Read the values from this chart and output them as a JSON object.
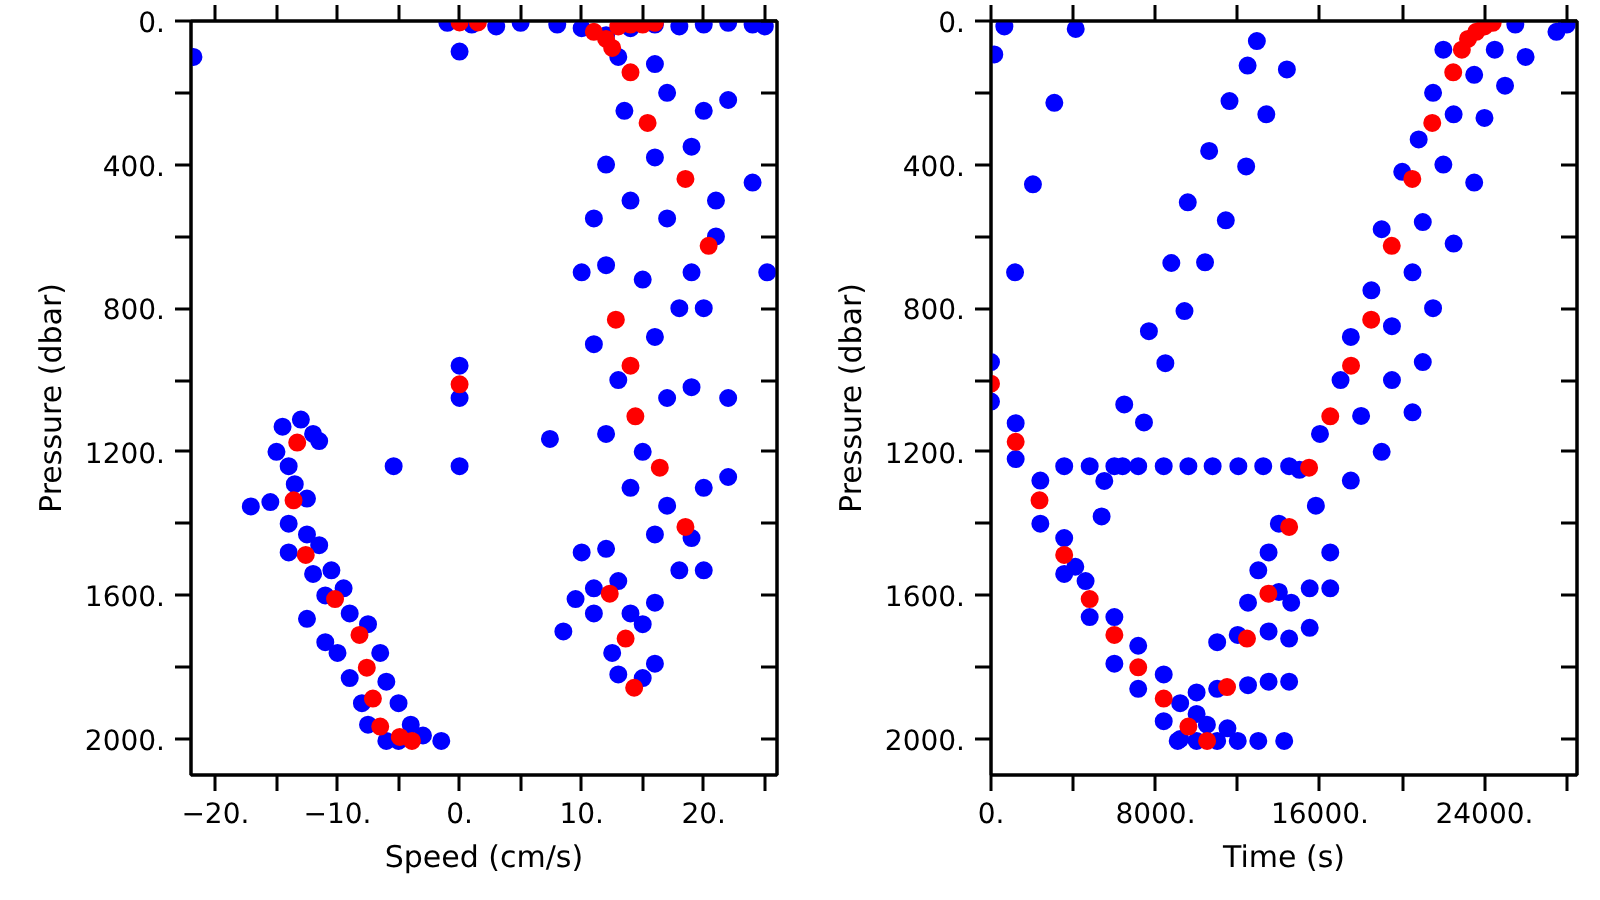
{
  "chart_data": [
    {
      "type": "scatter",
      "xlabel": "Speed (cm/s)",
      "ylabel": "Pressure (dbar)",
      "marker": "circle",
      "grid": false,
      "xlim": [
        -22,
        26
      ],
      "ylim": [
        2100,
        0
      ],
      "xticks": [
        {
          "value": -20,
          "label": "−20."
        },
        {
          "value": -15,
          "label": null
        },
        {
          "value": -10,
          "label": "−10."
        },
        {
          "value": -5,
          "label": null
        },
        {
          "value": 0,
          "label": "0."
        },
        {
          "value": 5,
          "label": null
        },
        {
          "value": 10,
          "label": "10."
        },
        {
          "value": 15,
          "label": null
        },
        {
          "value": 20,
          "label": "20."
        },
        {
          "value": 25,
          "label": null
        }
      ],
      "yticks": [
        {
          "value": 0,
          "label": "0."
        },
        {
          "value": 200,
          "label": null
        },
        {
          "value": 400,
          "label": "400."
        },
        {
          "value": 600,
          "label": null
        },
        {
          "value": 800,
          "label": "800."
        },
        {
          "value": 1000,
          "label": null
        },
        {
          "value": 1200,
          "label": "1200."
        },
        {
          "value": 1400,
          "label": null
        },
        {
          "value": 1600,
          "label": "1600."
        },
        {
          "value": 1800,
          "label": null
        },
        {
          "value": 2000,
          "label": "2000."
        }
      ],
      "series": [
        {
          "color": "#0000ff",
          "x": [
            -1,
            1,
            3,
            5,
            8,
            10,
            12,
            14,
            16,
            18,
            20,
            22,
            24,
            25,
            0,
            -21.8,
            -14.5,
            -13,
            -12,
            -15,
            -11.5,
            -14,
            -13.5,
            -15.5,
            -12.5,
            -17.1,
            -14,
            -12.5,
            -14,
            -11.5,
            -12,
            -10.5,
            -11,
            -9.5,
            -12.5,
            -9,
            -11,
            -7.5,
            -10,
            -6.5,
            -9,
            -6,
            -8,
            -5,
            -7.5,
            -4,
            -6,
            -3,
            -1.5,
            -5,
            0,
            0,
            0,
            -5.4,
            7.4,
            13,
            16,
            13.5,
            17,
            20,
            22,
            16,
            19,
            21,
            24,
            12,
            11,
            14,
            17,
            19,
            21,
            10,
            12,
            15,
            25.2,
            11,
            13,
            16,
            18,
            20,
            12,
            15,
            17,
            19,
            22,
            14,
            17,
            20,
            22,
            10,
            12,
            16,
            19,
            20,
            18,
            9.5,
            11,
            13,
            8.5,
            11,
            14,
            12.5,
            15,
            16,
            13,
            16,
            15
          ],
          "values": [
            5,
            10,
            15,
            5,
            10,
            20,
            40,
            20,
            10,
            15,
            10,
            5,
            10,
            15,
            85,
            100,
            1130,
            1110,
            1150,
            1200,
            1170,
            1240,
            1290,
            1340,
            1330,
            1352,
            1400,
            1430,
            1480,
            1460,
            1540,
            1530,
            1600,
            1580,
            1665,
            1650,
            1730,
            1680,
            1760,
            1760,
            1830,
            1840,
            1900,
            1900,
            1960,
            1960,
            2005,
            1990,
            2005,
            2005,
            960,
            1050,
            1240,
            1240,
            1164,
            100,
            120,
            250,
            200,
            250,
            220,
            380,
            350,
            500,
            450,
            400,
            550,
            500,
            550,
            700,
            600,
            700,
            680,
            720,
            700,
            900,
            1000,
            880,
            800,
            800,
            1150,
            1200,
            1050,
            1020,
            1050,
            1300,
            1350,
            1300,
            1270,
            1480,
            1470,
            1430,
            1440,
            1530,
            1530,
            1610,
            1580,
            1560,
            1700,
            1650,
            1650,
            1760,
            1680,
            1620,
            1820,
            1790,
            1830
          ]
        },
        {
          "color": "#ff0000",
          "x": [
            -13.3,
            -13.6,
            -12.6,
            -10.2,
            -8.2,
            -7.6,
            -7.1,
            -6.5,
            -4.9,
            -3.9,
            0,
            0,
            1.5,
            14.0,
            15.4,
            18.5,
            20.4,
            12.8,
            14.0,
            14.4,
            16.4,
            18.5,
            12.3,
            13.6,
            14.3,
            11.0,
            12.0,
            13.0,
            14.0,
            15.0,
            16.0,
            12.5
          ],
          "values": [
            1174,
            1335,
            1487,
            1610,
            1710,
            1801,
            1887,
            1965,
            1994,
            2005,
            1012,
            4,
            4,
            143,
            284,
            440,
            626,
            832,
            960,
            1101,
            1244,
            1409,
            1595,
            1720,
            1857,
            30,
            50,
            15,
            10,
            10,
            5,
            75
          ]
        }
      ]
    },
    {
      "type": "scatter",
      "xlabel": "Time (s)",
      "ylabel": "Pressure (dbar)",
      "marker": "circle",
      "grid": false,
      "xlim": [
        0,
        28500
      ],
      "ylim": [
        2100,
        0
      ],
      "xticks": [
        {
          "value": 0,
          "label": "0."
        },
        {
          "value": 4000,
          "label": null
        },
        {
          "value": 8000,
          "label": "8000."
        },
        {
          "value": 12000,
          "label": null
        },
        {
          "value": 16000,
          "label": "16000."
        },
        {
          "value": 20000,
          "label": null
        },
        {
          "value": 24000,
          "label": "24000."
        },
        {
          "value": 28000,
          "label": null
        }
      ],
      "yticks": [
        {
          "value": 0,
          "label": "0."
        },
        {
          "value": 200,
          "label": null
        },
        {
          "value": 400,
          "label": "400."
        },
        {
          "value": 600,
          "label": null
        },
        {
          "value": 800,
          "label": "800."
        },
        {
          "value": 1000,
          "label": null
        },
        {
          "value": 1200,
          "label": "1200."
        },
        {
          "value": 1400,
          "label": null
        },
        {
          "value": 1600,
          "label": "1600."
        },
        {
          "value": 1800,
          "label": null
        },
        {
          "value": 2000,
          "label": "2000."
        }
      ],
      "series": [
        {
          "color": "#0000ff",
          "x": [
            0,
            0,
            1200,
            1200,
            2400,
            2400,
            3560,
            3560,
            4100,
            4600,
            4800,
            6000,
            6000,
            7160,
            7160,
            8400,
            8400,
            9200,
            9200,
            9080,
            10000,
            11000,
            12000,
            13000,
            14260,
            10500,
            11500,
            10000,
            11000,
            12500,
            13500,
            14500,
            10000,
            11000,
            12000,
            13500,
            14500,
            15500,
            12500,
            14000,
            15500,
            16500,
            3560,
            4800,
            6000,
            6400,
            7160,
            8400,
            9600,
            10780,
            12030,
            13240,
            14500,
            5510,
            5380,
            6480,
            7440,
            7680,
            8480,
            8770,
            9410,
            9570,
            10410,
            10610,
            11420,
            11600,
            12410,
            12480,
            13390,
            12930,
            14390,
            3080,
            2040,
            1170,
            160,
            650,
            4120,
            14000,
            15800,
            16500,
            15000,
            17500,
            16000,
            18000,
            19000,
            17000,
            19500,
            20500,
            17500,
            19500,
            21000,
            18500,
            20500,
            21500,
            19000,
            21000,
            22500,
            20000,
            22000,
            23500,
            20800,
            22500,
            24000,
            21500,
            23500,
            25000,
            22000,
            24500,
            26000,
            27500,
            28000,
            25500,
            14600,
            13000,
            13500
          ],
          "values": [
            950,
            1060,
            1120,
            1220,
            1280,
            1400,
            1440,
            1540,
            1520,
            1560,
            1660,
            1660,
            1790,
            1740,
            1860,
            1820,
            1950,
            1900,
            2000,
            2005,
            2005,
            2005,
            2005,
            2005,
            2005,
            1960,
            1970,
            1870,
            1860,
            1850,
            1840,
            1840,
            1930,
            1730,
            1710,
            1700,
            1720,
            1690,
            1620,
            1590,
            1580,
            1580,
            1240,
            1240,
            1240,
            1240,
            1240,
            1240,
            1240,
            1240,
            1240,
            1240,
            1240,
            1281,
            1380,
            1068,
            1118,
            864,
            953,
            674,
            808,
            505,
            672,
            362,
            555,
            223,
            405,
            124,
            260,
            56,
            135,
            228,
            455,
            700,
            93,
            15,
            22,
            1400,
            1350,
            1480,
            1250,
            1280,
            1150,
            1100,
            1200,
            1000,
            1000,
            1090,
            880,
            850,
            950,
            750,
            700,
            800,
            580,
            560,
            620,
            420,
            400,
            450,
            330,
            260,
            270,
            200,
            150,
            180,
            80,
            80,
            100,
            30,
            10,
            10,
            1620,
            1530,
            1480
          ]
        },
        {
          "color": "#ff0000",
          "x": [
            0,
            1200,
            2360,
            3560,
            4800,
            6000,
            7160,
            8400,
            9600,
            10510,
            11480,
            12450,
            13490,
            14500,
            15470,
            16500,
            17510,
            18490,
            19490,
            20490,
            21460,
            22480,
            22900,
            23200,
            23600,
            24000,
            24400
          ],
          "values": [
            1010,
            1172,
            1335,
            1487,
            1610,
            1710,
            1800,
            1887,
            1965,
            2005,
            1855,
            1720,
            1595,
            1409,
            1244,
            1101,
            960,
            832,
            626,
            440,
            284,
            143,
            80,
            50,
            30,
            15,
            5
          ]
        }
      ]
    }
  ]
}
